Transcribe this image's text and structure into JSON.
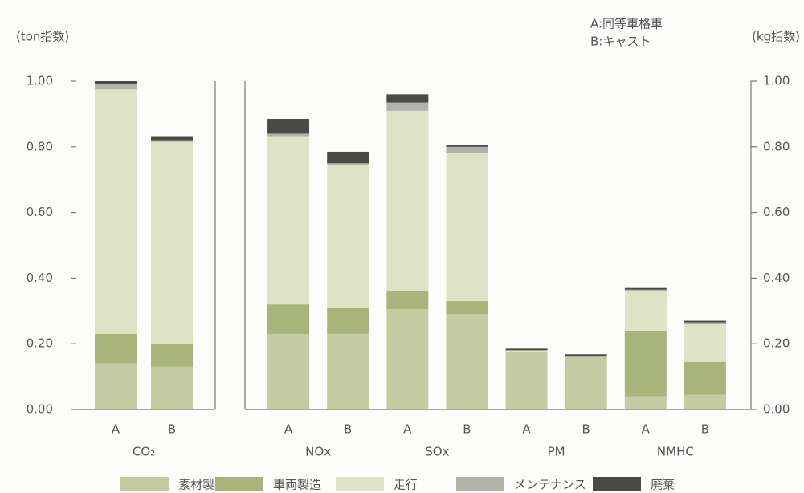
{
  "chart_data": [
    {
      "type": "bar",
      "stacked": true,
      "y_label": "(ton指数)",
      "categories": [
        "A",
        "B"
      ],
      "groups": [
        "CO₂"
      ],
      "ylim": [
        0,
        1
      ],
      "yticks": [
        {
          "value": 0,
          "label": "0.00"
        },
        {
          "value": 0.2,
          "label": "0.20"
        },
        {
          "value": 0.4,
          "label": "0.40"
        },
        {
          "value": 0.6,
          "label": "0.60"
        },
        {
          "value": 0.8,
          "label": "0.80"
        },
        {
          "value": 1,
          "label": "1.00"
        }
      ],
      "series": [
        {
          "name": "素材製造",
          "color": "#c5cca1",
          "values": [
            0.14,
            0.13
          ]
        },
        {
          "name": "車両製造",
          "color": "#a9b47a",
          "values": [
            0.09,
            0.07
          ]
        },
        {
          "name": "走行",
          "color": "#dde3c4",
          "values": [
            0.745,
            0.615
          ]
        },
        {
          "name": "メンテナンス",
          "color": "#b1b3ab",
          "values": [
            0.015,
            0.005
          ]
        },
        {
          "name": "廃棄",
          "color": "#4a4a45",
          "values": [
            0.01,
            0.01
          ]
        }
      ]
    },
    {
      "type": "bar",
      "stacked": true,
      "y_label": "(kg指数)",
      "annotations": [
        "A:同等車格車",
        "B:キャスト"
      ],
      "categories": [
        "A",
        "B",
        "A",
        "B",
        "A",
        "B",
        "A",
        "B"
      ],
      "groups": [
        "NOx",
        "SOx",
        "PM",
        "NMHC"
      ],
      "ylim": [
        0,
        1
      ],
      "yticks": [
        {
          "value": 0,
          "label": "0.00"
        },
        {
          "value": 0.2,
          "label": "0.20"
        },
        {
          "value": 0.4,
          "label": "0.40"
        },
        {
          "value": 0.6,
          "label": "0.60"
        },
        {
          "value": 0.8,
          "label": "0.80"
        },
        {
          "value": 1,
          "label": "1.00"
        }
      ],
      "series": [
        {
          "color": "#c5cca1",
          "values": [
            0.23,
            0.23,
            0.305,
            0.29,
            0.175,
            0.16,
            0.04,
            0.045
          ]
        },
        {
          "color": "#a9b47a",
          "values": [
            0.09,
            0.08,
            0.055,
            0.04,
            0,
            0,
            0.2,
            0.1
          ]
        },
        {
          "color": "#dde3c4",
          "values": [
            0.51,
            0.435,
            0.55,
            0.45,
            0.005,
            0.003,
            0.12,
            0.115
          ]
        },
        {
          "color": "#b1b3ab",
          "values": [
            0.01,
            0.005,
            0.025,
            0.02,
            0,
            0,
            0.005,
            0.005
          ]
        },
        {
          "color": "#4a4a45",
          "values": [
            0.045,
            0.035,
            0.025,
            0.005,
            0.005,
            0.005,
            0.005,
            0.005
          ]
        }
      ]
    }
  ]
}
